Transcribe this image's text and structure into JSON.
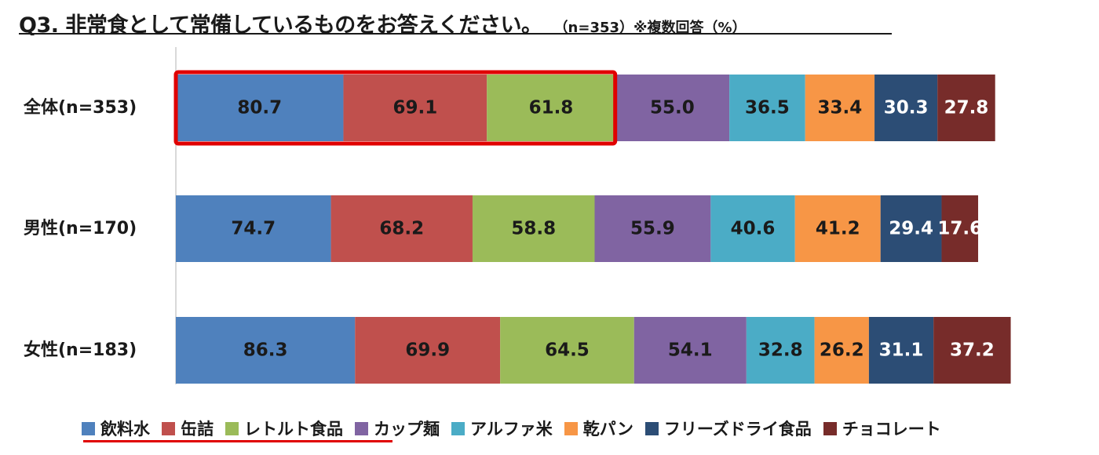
{
  "title": "Q3. 非常食として常備しているものをお答えください。",
  "title_note": "（n=353）※複数回答（%）",
  "highlight_color": "#e00000",
  "chart_data": {
    "type": "bar",
    "orientation": "horizontal",
    "stacked": true,
    "categories": [
      "全体(n=353)",
      "男性(n=170)",
      "女性(n=183)"
    ],
    "series": [
      {
        "name": "飲料水",
        "color": "#4f81bd",
        "label_color": "#1a1a1a",
        "values": [
          80.7,
          74.7,
          86.3
        ]
      },
      {
        "name": "缶詰",
        "color": "#c0504d",
        "label_color": "#1a1a1a",
        "values": [
          69.1,
          68.2,
          69.9
        ]
      },
      {
        "name": "レトルト食品",
        "color": "#9bbb59",
        "label_color": "#1a1a1a",
        "values": [
          61.8,
          58.8,
          64.5
        ]
      },
      {
        "name": "カップ麺",
        "color": "#8064a2",
        "label_color": "#1a1a1a",
        "values": [
          55.0,
          55.9,
          54.1
        ]
      },
      {
        "name": "アルファ米",
        "color": "#4bacc6",
        "label_color": "#1a1a1a",
        "values": [
          36.5,
          40.6,
          32.8
        ]
      },
      {
        "name": "乾パン",
        "color": "#f79646",
        "label_color": "#1a1a1a",
        "values": [
          33.4,
          41.2,
          26.2
        ]
      },
      {
        "name": "フリーズドライ食品",
        "color": "#2c4d75",
        "label_color": "#ffffff",
        "values": [
          30.3,
          29.4,
          31.1
        ]
      },
      {
        "name": "チョコレート",
        "color": "#772c2a",
        "label_color": "#ffffff",
        "values": [
          27.8,
          17.6,
          37.2
        ]
      }
    ],
    "data_labels": [
      [
        "80.7",
        "69.1",
        "61.8",
        "55.0",
        "36.5",
        "33.4",
        "30.3",
        "27.8"
      ],
      [
        "74.7",
        "68.2",
        "58.8",
        "55.9",
        "40.6",
        "41.2",
        "29.4",
        "17.6"
      ],
      [
        "86.3",
        "69.9",
        "64.5",
        "54.1",
        "32.8",
        "26.2",
        "31.1",
        "37.2"
      ]
    ],
    "highlighted": {
      "category": "全体(n=353)",
      "series": [
        "飲料水",
        "缶詰",
        "レトルト食品"
      ]
    },
    "legend_highlighted": [
      "飲料水",
      "缶詰",
      "レトルト食品"
    ],
    "legend_position": "bottom",
    "grid": false
  }
}
